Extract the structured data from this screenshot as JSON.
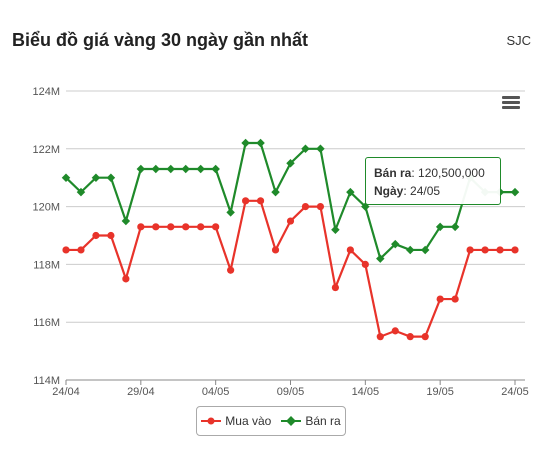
{
  "header": {
    "title": "Biểu đồ giá vàng 30 ngày gần nhất",
    "brand": "SJC"
  },
  "tooltip": {
    "sell_label": "Bán ra",
    "sell_value": "120,500,000",
    "date_label": "Ngày",
    "date_value": "24/05"
  },
  "legend": {
    "buy": "Mua vào",
    "sell": "Bán ra"
  },
  "colors": {
    "buy": "#e8332a",
    "sell": "#1f8a2a",
    "grid": "#cccccc"
  },
  "icons": {
    "menu": "menu-icon"
  },
  "chart_data": {
    "type": "line",
    "title": "Biểu đồ giá vàng 30 ngày gần nhất",
    "y_ticks": [
      "114M",
      "116M",
      "118M",
      "120M",
      "122M",
      "124M"
    ],
    "ylim": [
      114,
      124
    ],
    "y_unit": "M",
    "x_tick_labels": [
      "24/04",
      "29/04",
      "04/05",
      "09/05",
      "14/05",
      "19/05",
      "24/05"
    ],
    "x_tick_indices": [
      0,
      5,
      10,
      15,
      20,
      25,
      30
    ],
    "x_count": 31,
    "legend_position": "bottom",
    "series": [
      {
        "name": "Mua vào",
        "values": [
          118.5,
          118.5,
          119.0,
          119.0,
          117.5,
          119.3,
          119.3,
          119.3,
          119.3,
          119.3,
          119.3,
          117.8,
          120.2,
          120.2,
          118.5,
          119.5,
          120.0,
          120.0,
          117.2,
          118.5,
          118.0,
          115.5,
          115.7,
          115.5,
          115.5,
          116.8,
          116.8,
          118.5,
          118.5,
          118.5,
          118.5
        ]
      },
      {
        "name": "Bán ra",
        "values": [
          121.0,
          120.5,
          121.0,
          121.0,
          119.5,
          121.3,
          121.3,
          121.3,
          121.3,
          121.3,
          121.3,
          119.8,
          122.2,
          122.2,
          120.5,
          121.5,
          122.0,
          122.0,
          119.2,
          120.5,
          120.0,
          118.2,
          118.7,
          118.5,
          118.5,
          119.3,
          119.3,
          121.0,
          120.5,
          120.5,
          120.5
        ]
      }
    ]
  }
}
